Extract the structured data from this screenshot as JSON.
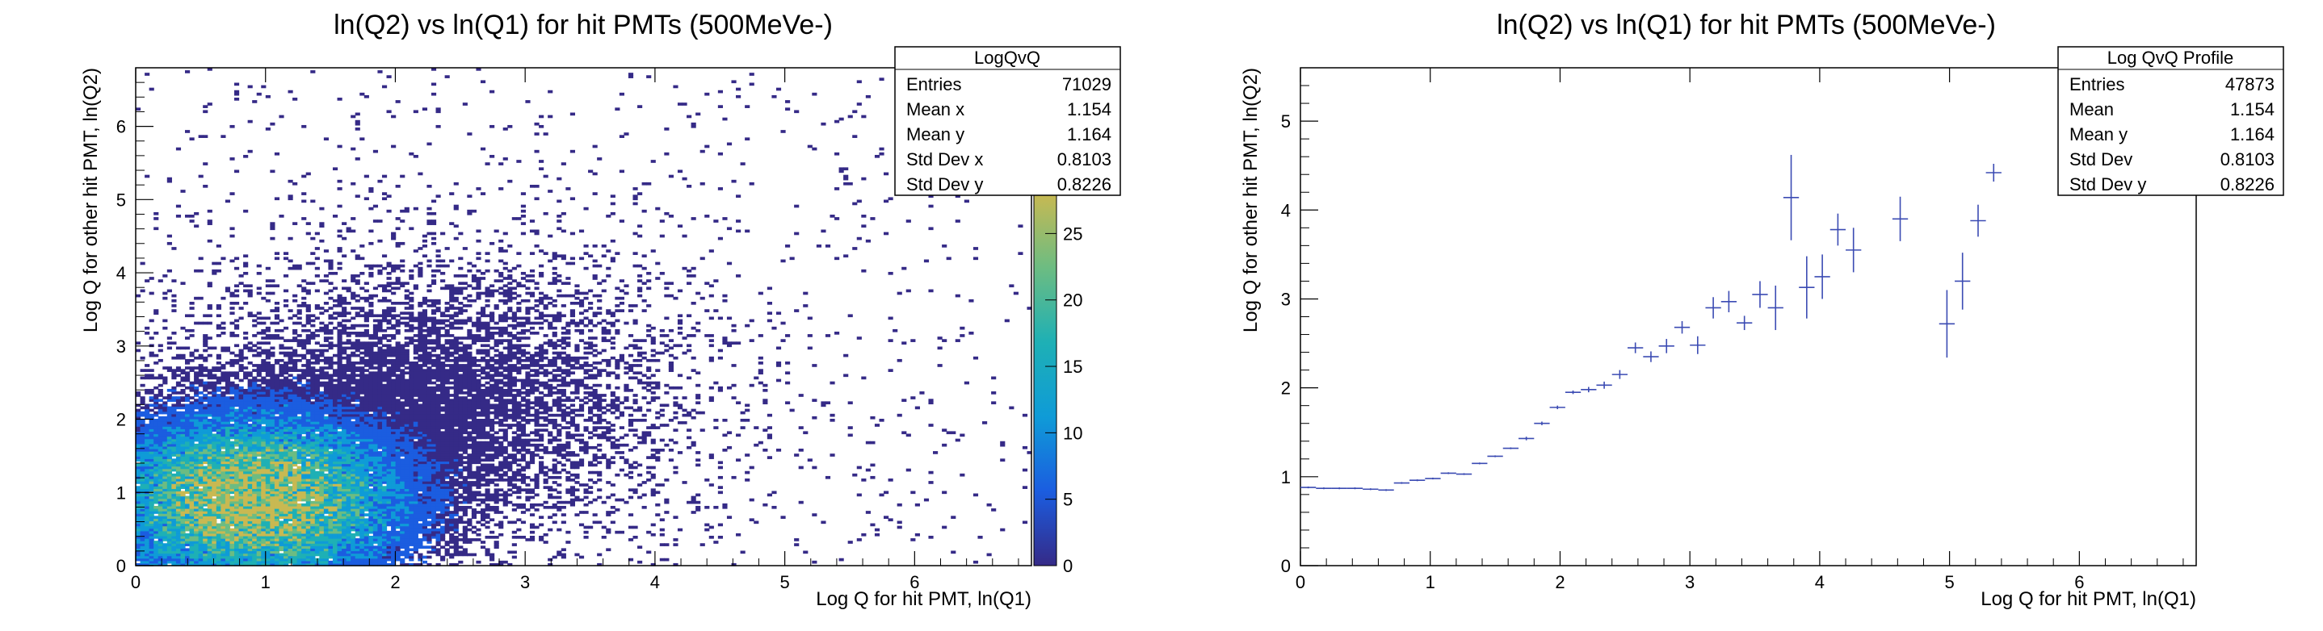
{
  "chart_data": [
    {
      "type": "heatmap",
      "title": "ln(Q2) vs ln(Q1) for hit PMTs (500MeVe-)",
      "xlabel": "Log Q for hit PMT, ln(Q1)",
      "ylabel": "Log Q for other hit PMT, ln(Q2)",
      "xlim": [
        0,
        6.9
      ],
      "ylim": [
        0,
        6.8
      ],
      "xticks": [
        "0",
        "1",
        "2",
        "3",
        "4",
        "5",
        "6"
      ],
      "yticks": [
        "0",
        "1",
        "2",
        "3",
        "4",
        "5",
        "6"
      ],
      "colorbar": {
        "min": 0,
        "max": 28,
        "ticks": [
          "0",
          "5",
          "10",
          "15",
          "20",
          "25"
        ]
      },
      "stats": {
        "title": "LogQvQ",
        "rows": [
          {
            "label": "Entries",
            "value": "71029"
          },
          {
            "label": "Mean x",
            "value": "1.154"
          },
          {
            "label": "Mean y",
            "value": "1.164"
          },
          {
            "label": "Std Dev x",
            "value": "0.8103"
          },
          {
            "label": "Std Dev y",
            "value": "0.8226"
          }
        ]
      },
      "density_note_values": {
        "core_x": [
          0,
          2.3
        ],
        "core_y": [
          0,
          2.3
        ]
      },
      "grid": false,
      "legend": "top-right"
    },
    {
      "type": "scatter",
      "title": "ln(Q2) vs ln(Q1) for hit PMTs (500MeVe-)",
      "xlabel": "Log Q for hit PMT, ln(Q1)",
      "ylabel": "Log Q for other hit PMT, ln(Q2)",
      "xlim": [
        0,
        6.9
      ],
      "ylim": [
        0,
        5.6
      ],
      "xticks": [
        "0",
        "1",
        "2",
        "3",
        "4",
        "5",
        "6"
      ],
      "yticks": [
        "0",
        "1",
        "2",
        "3",
        "4",
        "5"
      ],
      "stats": {
        "title": "Log QvQ Profile",
        "rows": [
          {
            "label": "Entries",
            "value": "47873"
          },
          {
            "label": "Mean",
            "value": "1.154"
          },
          {
            "label": "Mean y",
            "value": "1.164"
          },
          {
            "label": "Std Dev",
            "value": "0.8103"
          },
          {
            "label": "Std Dev y",
            "value": "0.8226"
          }
        ]
      },
      "bin_half_width": 0.06,
      "points": [
        {
          "x": 0.06,
          "y": 0.88,
          "e": 0.01
        },
        {
          "x": 0.18,
          "y": 0.87,
          "e": 0.01
        },
        {
          "x": 0.3,
          "y": 0.87,
          "e": 0.01
        },
        {
          "x": 0.42,
          "y": 0.87,
          "e": 0.01
        },
        {
          "x": 0.54,
          "y": 0.86,
          "e": 0.01
        },
        {
          "x": 0.66,
          "y": 0.85,
          "e": 0.01
        },
        {
          "x": 0.78,
          "y": 0.93,
          "e": 0.01
        },
        {
          "x": 0.9,
          "y": 0.96,
          "e": 0.01
        },
        {
          "x": 1.02,
          "y": 0.98,
          "e": 0.01
        },
        {
          "x": 1.14,
          "y": 1.04,
          "e": 0.01
        },
        {
          "x": 1.26,
          "y": 1.03,
          "e": 0.01
        },
        {
          "x": 1.38,
          "y": 1.15,
          "e": 0.01
        },
        {
          "x": 1.5,
          "y": 1.23,
          "e": 0.01
        },
        {
          "x": 1.62,
          "y": 1.32,
          "e": 0.01
        },
        {
          "x": 1.74,
          "y": 1.43,
          "e": 0.02
        },
        {
          "x": 1.86,
          "y": 1.6,
          "e": 0.02
        },
        {
          "x": 1.98,
          "y": 1.78,
          "e": 0.02
        },
        {
          "x": 2.1,
          "y": 1.95,
          "e": 0.02
        },
        {
          "x": 2.22,
          "y": 1.98,
          "e": 0.03
        },
        {
          "x": 2.34,
          "y": 2.03,
          "e": 0.04
        },
        {
          "x": 2.46,
          "y": 2.15,
          "e": 0.05
        },
        {
          "x": 2.58,
          "y": 2.45,
          "e": 0.06
        },
        {
          "x": 2.7,
          "y": 2.35,
          "e": 0.06
        },
        {
          "x": 2.82,
          "y": 2.47,
          "e": 0.08
        },
        {
          "x": 2.94,
          "y": 2.68,
          "e": 0.07
        },
        {
          "x": 3.06,
          "y": 2.48,
          "e": 0.1
        },
        {
          "x": 3.18,
          "y": 2.9,
          "e": 0.12
        },
        {
          "x": 3.3,
          "y": 2.97,
          "e": 0.12
        },
        {
          "x": 3.42,
          "y": 2.73,
          "e": 0.08
        },
        {
          "x": 3.54,
          "y": 3.05,
          "e": 0.15
        },
        {
          "x": 3.66,
          "y": 2.9,
          "e": 0.25
        },
        {
          "x": 3.78,
          "y": 4.14,
          "e": 0.48
        },
        {
          "x": 3.9,
          "y": 3.13,
          "e": 0.35
        },
        {
          "x": 4.02,
          "y": 3.25,
          "e": 0.25
        },
        {
          "x": 4.14,
          "y": 3.78,
          "e": 0.18
        },
        {
          "x": 4.26,
          "y": 3.55,
          "e": 0.25
        },
        {
          "x": 4.62,
          "y": 3.9,
          "e": 0.25
        },
        {
          "x": 4.98,
          "y": 2.72,
          "e": 0.38
        },
        {
          "x": 5.1,
          "y": 3.2,
          "e": 0.32
        },
        {
          "x": 5.22,
          "y": 3.88,
          "e": 0.18
        },
        {
          "x": 5.34,
          "y": 4.42,
          "e": 0.1
        }
      ],
      "grid": false,
      "legend": "top-right"
    }
  ]
}
